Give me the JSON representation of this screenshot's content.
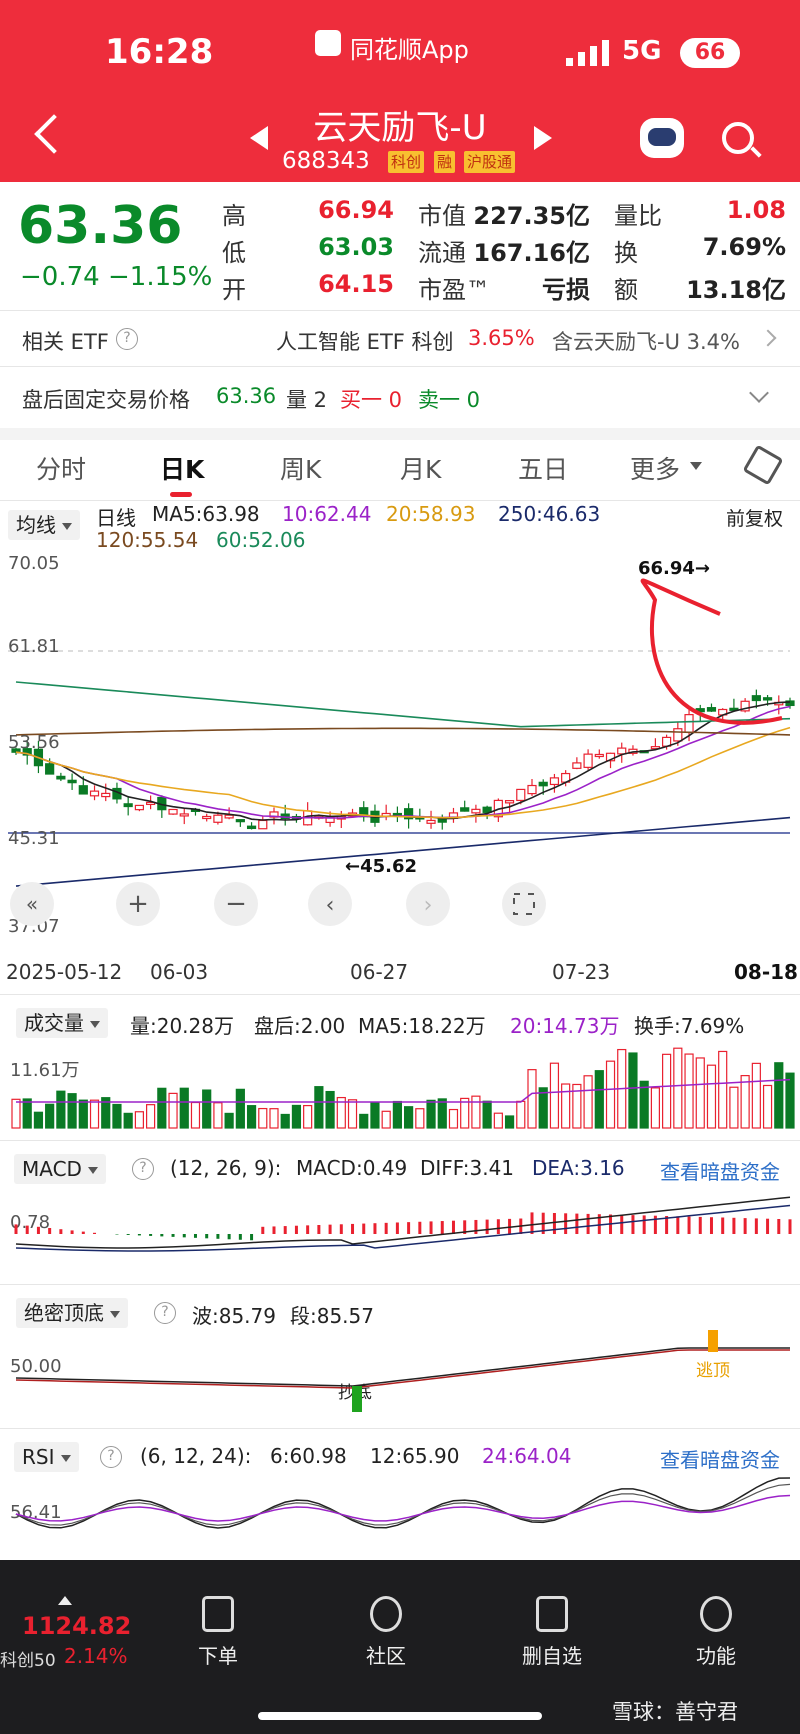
{
  "status": {
    "time": "16:28",
    "app": "同花顺App",
    "network": "5G",
    "battery": "66"
  },
  "header": {
    "stock_name": "云天励飞-U",
    "stock_code": "688343",
    "tags": [
      "科创",
      "融",
      "沪股通"
    ]
  },
  "quote": {
    "price": "63.36",
    "change": "−0.74",
    "change_pct": "−1.15%",
    "high_label": "高",
    "high": "66.94",
    "low_label": "低",
    "low": "63.03",
    "open_label": "开",
    "open": "64.15",
    "mcap_label": "市值",
    "mcap": "227.35亿",
    "float_label": "流通",
    "float": "167.16亿",
    "pe_label": "市盈™",
    "pe": "亏损",
    "vr_label": "量比",
    "vr": "1.08",
    "turnover_label": "换",
    "turnover": "7.69%",
    "amount_label": "额",
    "amount": "13.18亿"
  },
  "etf": {
    "label": "相关 ETF",
    "name": "人工智能 ETF 科创",
    "pct": "3.65%",
    "weight": "含云天励飞-U 3.4%"
  },
  "after_hours": {
    "label": "盘后固定交易价格",
    "price": "63.36",
    "vol": "量 2",
    "buy": "买一 0",
    "sell": "卖一 0"
  },
  "tabs": [
    "分时",
    "日K",
    "周K",
    "月K",
    "五日",
    "更多"
  ],
  "kline": {
    "indicator_btn": "均线",
    "period": "日线",
    "ma5": "MA5:63.98",
    "ma10": "10:62.44",
    "ma20": "20:58.93",
    "ma250": "250:46.63",
    "ma120": "120:55.54",
    "ma60": "60:52.06",
    "fq": "前复权",
    "y_labels": [
      "70.05",
      "61.81",
      "53.56",
      "45.31",
      "37.07"
    ],
    "dates": [
      "2025-05-12",
      "06-03",
      "06-27",
      "07-23",
      "08-18"
    ],
    "high_marker": "66.94→",
    "low_marker": "←45.62",
    "colors": {
      "up": "#e9212f",
      "down": "#0a7a25",
      "ma5": "#222222",
      "ma10": "#9b22c8",
      "ma20": "#e8a820",
      "ma60": "#1a8a5a",
      "ma120": "#7a4a20",
      "ma250": "#1a2a6a"
    }
  },
  "volume": {
    "indicator_btn": "成交量",
    "vol": "量:20.28万",
    "after": "盘后:2.00",
    "ma5": "MA5:18.22万",
    "ma20": "20:14.73万",
    "turnover": "换手:7.69%",
    "y_label": "11.61万"
  },
  "macd": {
    "indicator_btn": "MACD",
    "params": "(12, 26, 9):",
    "macd": "MACD:0.49",
    "diff": "DIFF:3.41",
    "dea": "DEA:3.16",
    "link": "查看暗盘资金",
    "y_label": "0.78"
  },
  "jmdd": {
    "indicator_btn": "绝密顶底",
    "wave": "波:85.79",
    "seg": "段:85.57",
    "y_label": "50.00",
    "bottom_label": "抄底",
    "top_label": "逃顶"
  },
  "rsi": {
    "indicator_btn": "RSI",
    "params": "(6, 12, 24):",
    "r6": "6:60.98",
    "r12": "12:65.90",
    "r24": "24:64.04",
    "link": "查看暗盘资金",
    "y_label": "56.41"
  },
  "bottom_nav": {
    "index_value": "1124.82",
    "index_name": "科创50",
    "index_pct": "2.14%",
    "items": [
      "下单",
      "社区",
      "删自选",
      "功能"
    ],
    "watermark": "雪球：善守君"
  }
}
